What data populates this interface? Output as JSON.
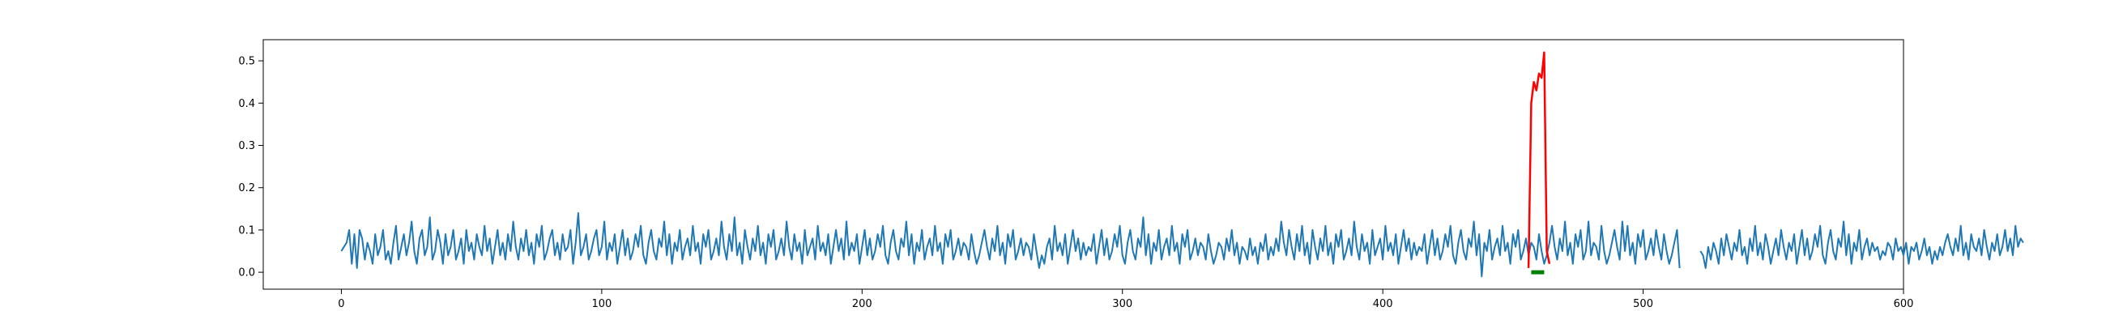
{
  "chart_data": {
    "type": "line",
    "title": "",
    "xlabel": "",
    "ylabel": "",
    "xlim": [
      -30,
      600
    ],
    "ylim": [
      -0.04,
      0.55
    ],
    "grid": false,
    "xticks": [
      0,
      100,
      200,
      300,
      400,
      500,
      600
    ],
    "xtick_labels": [
      "0",
      "100",
      "200",
      "300",
      "400",
      "500",
      "600"
    ],
    "yticks": [
      0.0,
      0.1,
      0.2,
      0.3,
      0.4,
      0.5
    ],
    "ytick_labels": [
      "0.0",
      "0.1",
      "0.2",
      "0.3",
      "0.4",
      "0.5"
    ],
    "series": [
      {
        "color": "#1f77b4",
        "x_start": 0,
        "x_step": 1,
        "values": [
          0.05,
          0.06,
          0.07,
          0.1,
          0.02,
          0.09,
          0.01,
          0.1,
          0.08,
          0.03,
          0.07,
          0.05,
          0.02,
          0.09,
          0.04,
          0.06,
          0.1,
          0.03,
          0.05,
          0.02,
          0.07,
          0.11,
          0.03,
          0.06,
          0.09,
          0.04,
          0.07,
          0.12,
          0.05,
          0.02,
          0.08,
          0.1,
          0.04,
          0.06,
          0.13,
          0.03,
          0.05,
          0.1,
          0.07,
          0.02,
          0.09,
          0.04,
          0.06,
          0.1,
          0.03,
          0.05,
          0.08,
          0.02,
          0.1,
          0.05,
          0.07,
          0.03,
          0.09,
          0.06,
          0.04,
          0.11,
          0.05,
          0.08,
          0.02,
          0.06,
          0.1,
          0.04,
          0.07,
          0.03,
          0.09,
          0.05,
          0.12,
          0.06,
          0.03,
          0.08,
          0.05,
          0.1,
          0.04,
          0.07,
          0.02,
          0.09,
          0.06,
          0.11,
          0.03,
          0.05,
          0.08,
          0.1,
          0.04,
          0.07,
          0.03,
          0.09,
          0.05,
          0.06,
          0.1,
          0.02,
          0.07,
          0.14,
          0.04,
          0.06,
          0.09,
          0.03,
          0.05,
          0.08,
          0.1,
          0.04,
          0.06,
          0.12,
          0.03,
          0.07,
          0.05,
          0.09,
          0.02,
          0.06,
          0.1,
          0.04,
          0.08,
          0.03,
          0.05,
          0.09,
          0.06,
          0.11,
          0.04,
          0.02,
          0.07,
          0.1,
          0.05,
          0.03,
          0.08,
          0.06,
          0.12,
          0.04,
          0.09,
          0.02,
          0.07,
          0.05,
          0.1,
          0.03,
          0.06,
          0.08,
          0.04,
          0.11,
          0.05,
          0.07,
          0.02,
          0.09,
          0.06,
          0.1,
          0.03,
          0.05,
          0.08,
          0.04,
          0.12,
          0.06,
          0.03,
          0.09,
          0.05,
          0.13,
          0.04,
          0.07,
          0.02,
          0.1,
          0.06,
          0.03,
          0.08,
          0.05,
          0.11,
          0.04,
          0.07,
          0.02,
          0.09,
          0.06,
          0.1,
          0.03,
          0.05,
          0.08,
          0.04,
          0.12,
          0.06,
          0.03,
          0.09,
          0.05,
          0.07,
          0.02,
          0.1,
          0.04,
          0.06,
          0.08,
          0.03,
          0.11,
          0.05,
          0.07,
          0.04,
          0.09,
          0.02,
          0.06,
          0.1,
          0.05,
          0.08,
          0.03,
          0.12,
          0.04,
          0.07,
          0.05,
          0.09,
          0.02,
          0.06,
          0.1,
          0.04,
          0.08,
          0.03,
          0.05,
          0.09,
          0.06,
          0.11,
          0.04,
          0.02,
          0.07,
          0.1,
          0.05,
          0.03,
          0.08,
          0.06,
          0.12,
          0.04,
          0.09,
          0.02,
          0.07,
          0.05,
          0.1,
          0.03,
          0.06,
          0.08,
          0.04,
          0.11,
          0.05,
          0.07,
          0.02,
          0.09,
          0.06,
          0.1,
          0.03,
          0.05,
          0.08,
          0.04,
          0.07,
          0.06,
          0.03,
          0.09,
          0.05,
          0.02,
          0.04,
          0.07,
          0.1,
          0.06,
          0.03,
          0.08,
          0.05,
          0.11,
          0.04,
          0.07,
          0.02,
          0.09,
          0.06,
          0.1,
          0.03,
          0.05,
          0.08,
          0.04,
          0.07,
          0.06,
          0.03,
          0.09,
          0.05,
          0.01,
          0.04,
          0.02,
          0.06,
          0.08,
          0.03,
          0.11,
          0.05,
          0.07,
          0.04,
          0.09,
          0.02,
          0.06,
          0.1,
          0.05,
          0.08,
          0.03,
          0.07,
          0.04,
          0.06,
          0.05,
          0.09,
          0.02,
          0.06,
          0.1,
          0.04,
          0.08,
          0.03,
          0.05,
          0.09,
          0.06,
          0.11,
          0.04,
          0.02,
          0.07,
          0.1,
          0.05,
          0.03,
          0.08,
          0.06,
          0.13,
          0.04,
          0.09,
          0.02,
          0.07,
          0.05,
          0.1,
          0.03,
          0.06,
          0.08,
          0.04,
          0.11,
          0.05,
          0.07,
          0.02,
          0.09,
          0.06,
          0.1,
          0.03,
          0.05,
          0.08,
          0.04,
          0.07,
          0.06,
          0.03,
          0.09,
          0.05,
          0.02,
          0.04,
          0.07,
          0.06,
          0.03,
          0.08,
          0.05,
          0.1,
          0.04,
          0.07,
          0.02,
          0.06,
          0.05,
          0.03,
          0.08,
          0.04,
          0.06,
          0.02,
          0.07,
          0.05,
          0.09,
          0.03,
          0.06,
          0.04,
          0.08,
          0.05,
          0.12,
          0.07,
          0.04,
          0.1,
          0.06,
          0.03,
          0.09,
          0.05,
          0.11,
          0.04,
          0.07,
          0.02,
          0.1,
          0.06,
          0.03,
          0.08,
          0.05,
          0.11,
          0.04,
          0.07,
          0.02,
          0.09,
          0.06,
          0.1,
          0.03,
          0.05,
          0.08,
          0.04,
          0.12,
          0.06,
          0.03,
          0.09,
          0.05,
          0.07,
          0.02,
          0.1,
          0.04,
          0.06,
          0.08,
          0.03,
          0.11,
          0.05,
          0.07,
          0.04,
          0.09,
          0.02,
          0.06,
          0.1,
          0.05,
          0.08,
          0.03,
          0.07,
          0.04,
          0.06,
          0.05,
          0.09,
          0.02,
          0.06,
          0.1,
          0.04,
          0.08,
          0.03,
          0.05,
          0.09,
          0.06,
          0.11,
          0.04,
          0.02,
          0.07,
          0.1,
          0.05,
          0.03,
          0.08,
          0.06,
          0.12,
          0.04,
          0.09,
          -0.01,
          0.07,
          0.05,
          0.1,
          0.03,
          0.06,
          0.08,
          0.04,
          0.11,
          0.05,
          0.07,
          0.02,
          0.09,
          0.06,
          0.1,
          0.03,
          0.05,
          0.08,
          0.04,
          0.07,
          0.06,
          0.03,
          0.09,
          0.05,
          0.02,
          0.04,
          0.07,
          0.11,
          0.06,
          0.03,
          0.08,
          0.05,
          0.12,
          0.04,
          0.07,
          0.02,
          0.09,
          0.06,
          0.1,
          0.03,
          0.05,
          0.12,
          0.04,
          0.07,
          0.06,
          0.03,
          0.11,
          0.05,
          0.02,
          0.04,
          0.07,
          0.1,
          0.06,
          0.03,
          0.12,
          0.05,
          0.11,
          0.04,
          0.07,
          0.02,
          0.09,
          0.06,
          0.1,
          0.03,
          0.05,
          0.08,
          0.04,
          0.1,
          0.06,
          0.03,
          0.09,
          0.05,
          0.02,
          0.04,
          0.07,
          0.1,
          0.01,
          null,
          null,
          null,
          null,
          null,
          null,
          null,
          0.05,
          0.04,
          0.01,
          0.06,
          0.03,
          0.07,
          0.05,
          0.02,
          0.08,
          0.04,
          0.09,
          0.06,
          0.03,
          0.07,
          0.05,
          0.1,
          0.04,
          0.06,
          0.02,
          0.08,
          0.05,
          0.11,
          0.04,
          0.07,
          0.03,
          0.09,
          0.06,
          0.02,
          0.05,
          0.08,
          0.04,
          0.1,
          0.06,
          0.03,
          0.07,
          0.05,
          0.09,
          0.02,
          0.06,
          0.1,
          0.04,
          0.08,
          0.03,
          0.05,
          0.09,
          0.06,
          0.11,
          0.04,
          0.02,
          0.07,
          0.1,
          0.05,
          0.03,
          0.08,
          0.06,
          0.12,
          0.04,
          0.09,
          0.02,
          0.07,
          0.05,
          0.1,
          0.03,
          0.06,
          0.08,
          0.04,
          0.07,
          0.05,
          0.06,
          0.03,
          0.05,
          0.04,
          0.07,
          0.06,
          0.03,
          0.08,
          0.05,
          0.06,
          0.04,
          0.07,
          0.02,
          0.06,
          0.05,
          0.07,
          0.03,
          0.05,
          0.08,
          0.04,
          0.06,
          0.02,
          0.05,
          0.03,
          0.06,
          0.04,
          0.07,
          0.09,
          0.06,
          0.04,
          0.08,
          0.05,
          0.11,
          0.04,
          0.07,
          0.03,
          0.09,
          0.06,
          0.05,
          0.08,
          0.04,
          0.1,
          0.06,
          0.03,
          0.07,
          0.05,
          0.09,
          0.04,
          0.06,
          0.1,
          0.05,
          0.08,
          0.04,
          0.11,
          0.06,
          0.08,
          0.07
        ]
      },
      {
        "color": "#ff0000",
        "x": [
          456,
          457,
          458,
          459,
          460,
          461,
          462,
          463,
          464
        ],
        "values": [
          0.01,
          0.4,
          0.45,
          0.43,
          0.47,
          0.46,
          0.52,
          0.05,
          0.02
        ]
      },
      {
        "color": "#008000",
        "x": [
          457,
          458,
          459,
          460,
          461,
          462
        ],
        "values": [
          0.0,
          0.0,
          0.0,
          0.0,
          0.0,
          0.0
        ]
      }
    ]
  }
}
